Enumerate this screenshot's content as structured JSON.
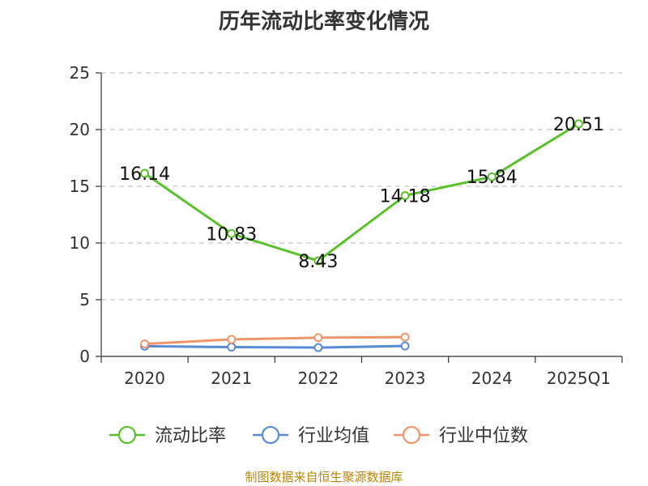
{
  "chart_data": {
    "type": "line",
    "title": "历年流动比率变化情况",
    "categories": [
      "2020",
      "2021",
      "2022",
      "2023",
      "2024",
      "2025Q1"
    ],
    "ylim": [
      0,
      25
    ],
    "yticks": [
      0,
      5,
      10,
      15,
      20,
      25
    ],
    "grid": true,
    "legend_position": "bottom",
    "series": [
      {
        "name": "流动比率",
        "color": "#5ac02a",
        "values": [
          16.14,
          10.83,
          8.43,
          14.18,
          15.84,
          20.51
        ],
        "labels": [
          "16.14",
          "10.83",
          "8.43",
          "14.18",
          "15.84",
          "20.51"
        ]
      },
      {
        "name": "行业均值",
        "color": "#5b8ad6",
        "values": [
          0.9,
          0.82,
          0.78,
          0.92,
          null,
          null
        ]
      },
      {
        "name": "行业中位数",
        "color": "#f0956a",
        "values": [
          1.1,
          1.5,
          1.65,
          1.7,
          null,
          null
        ]
      }
    ]
  },
  "footer": {
    "source": "制图数据来自恒生聚源数据库"
  }
}
